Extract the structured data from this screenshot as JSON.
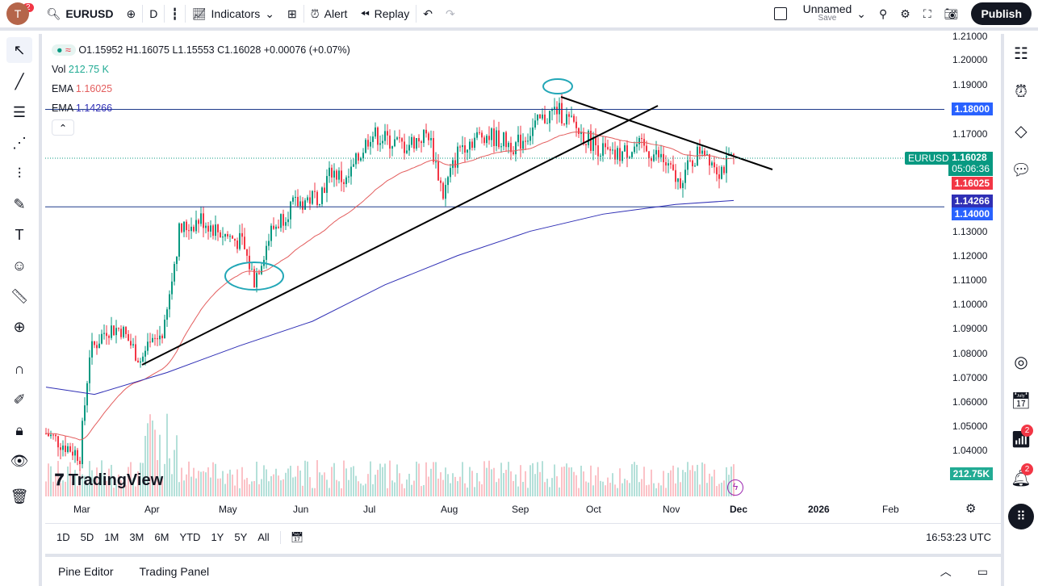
{
  "toolbar": {
    "avatar": "T",
    "avatar_badge": "2",
    "symbol": "EURUSD",
    "interval": "D",
    "indicators": "Indicators",
    "alert": "Alert",
    "replay": "Replay",
    "layout_name": "Unnamed",
    "layout_save": "Save",
    "publish": "Publish"
  },
  "legend": {
    "ohlc": "O1.15952  H1.16075  L1.15553  C1.16028  +0.00076 (+0.07%)",
    "vol_label": "Vol",
    "vol": "212.75 K",
    "ema1_label": "EMA",
    "ema1": "1.16025",
    "ema2_label": "EMA",
    "ema2": "1.14266"
  },
  "price_axis": [
    "1.21000",
    "1.20000",
    "1.19000",
    "1.17000",
    "1.13000",
    "1.12000",
    "1.11000",
    "1.10000",
    "1.09000",
    "1.08000",
    "1.07000",
    "1.06000",
    "1.05000",
    "1.04000"
  ],
  "price_labels": {
    "h1": "1.18000",
    "symbol": "EURUSD",
    "last": "1.16028",
    "countdown": "05:06:36",
    "ema1": "1.16025",
    "ema2": "1.14266",
    "h2": "1.14000",
    "vol": "212.75K"
  },
  "colors": {
    "up": "#089981",
    "down": "#f23645",
    "ema_fast": "#e35d5d",
    "ema_slow": "#2f2fb5",
    "hline": "#2962ff"
  },
  "time_axis": [
    "Mar",
    "Apr",
    "May",
    "Jun",
    "Jul",
    "Aug",
    "Sep",
    "Oct",
    "Nov",
    "Dec",
    "2026",
    "Feb"
  ],
  "watermark": "TradingView",
  "ranges": [
    "1D",
    "5D",
    "1M",
    "3M",
    "6M",
    "YTD",
    "1Y",
    "5Y",
    "All"
  ],
  "clock": "16:53:23 UTC",
  "panels": [
    "Pine Editor",
    "Trading Panel"
  ],
  "right_badges": [
    "2",
    "2"
  ],
  "chart_data": {
    "type": "candlestick",
    "symbol": "EURUSD",
    "ylim": [
      1.035,
      1.21
    ],
    "price_path": [
      [
        0,
        1.047
      ],
      [
        8,
        1.042
      ],
      [
        14,
        1.038
      ],
      [
        18,
        1.08
      ],
      [
        25,
        1.09
      ],
      [
        31,
        1.09
      ],
      [
        39,
        1.077
      ],
      [
        49,
        1.09
      ],
      [
        55,
        1.13
      ],
      [
        64,
        1.135
      ],
      [
        71,
        1.13
      ],
      [
        81,
        1.125
      ],
      [
        86,
        1.11
      ],
      [
        93,
        1.13
      ],
      [
        101,
        1.14
      ],
      [
        113,
        1.145
      ],
      [
        118,
        1.155
      ],
      [
        124,
        1.15
      ],
      [
        134,
        1.17
      ],
      [
        148,
        1.165
      ],
      [
        158,
        1.17
      ],
      [
        164,
        1.145
      ],
      [
        171,
        1.165
      ],
      [
        181,
        1.17
      ],
      [
        194,
        1.165
      ],
      [
        204,
        1.175
      ],
      [
        211,
        1.18
      ],
      [
        221,
        1.17
      ],
      [
        234,
        1.16
      ],
      [
        244,
        1.165
      ],
      [
        254,
        1.16
      ],
      [
        261,
        1.15
      ],
      [
        268,
        1.16
      ],
      [
        271,
        1.165
      ],
      [
        278,
        1.155
      ],
      [
        284,
        1.16
      ]
    ],
    "ema_slow": [
      [
        0,
        1.066
      ],
      [
        20,
        1.063
      ],
      [
        50,
        1.072
      ],
      [
        80,
        1.083
      ],
      [
        110,
        1.093
      ],
      [
        140,
        1.108
      ],
      [
        170,
        1.12
      ],
      [
        200,
        1.13
      ],
      [
        230,
        1.137
      ],
      [
        260,
        1.141
      ],
      [
        284,
        1.1426
      ]
    ],
    "hlines": [
      1.18,
      1.14
    ]
  }
}
